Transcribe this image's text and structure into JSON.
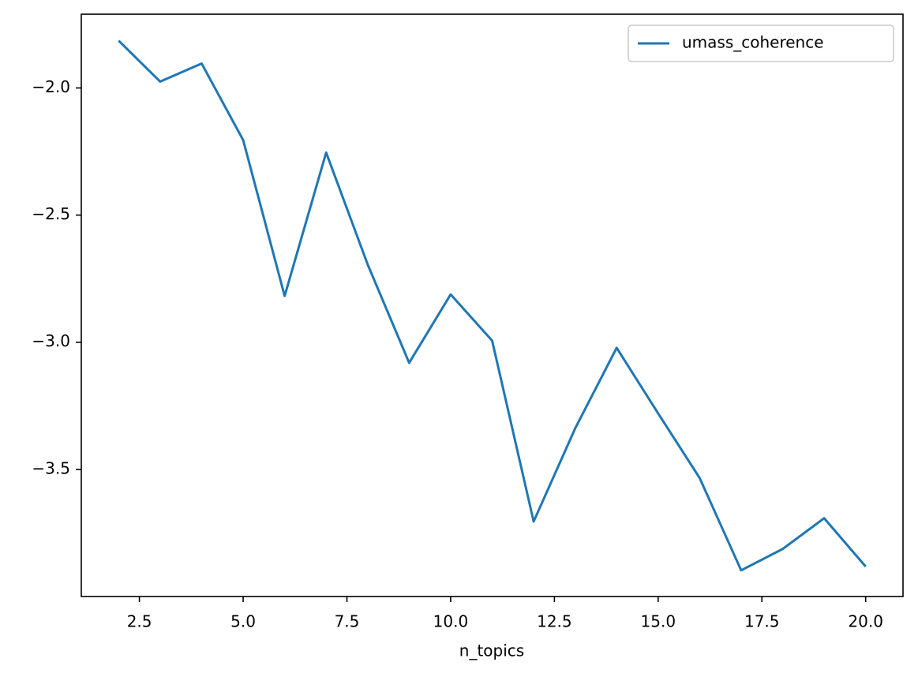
{
  "chart_data": {
    "type": "line",
    "x": [
      2,
      3,
      4,
      5,
      6,
      7,
      8,
      9,
      10,
      11,
      12,
      13,
      14,
      15,
      16,
      17,
      18,
      19,
      20
    ],
    "series": [
      {
        "name": "umass_coherence",
        "color": "#1f77b4",
        "values": [
          -1.814,
          -1.975,
          -1.904,
          -2.205,
          -2.818,
          -2.254,
          -2.694,
          -3.081,
          -2.812,
          -2.994,
          -3.705,
          -3.339,
          -3.022,
          -3.28,
          -3.534,
          -3.897,
          -3.813,
          -3.692,
          -3.882
        ]
      }
    ],
    "xlabel": "n_topics",
    "xlim": [
      1.1,
      20.9
    ],
    "ylim": [
      -4.0,
      -1.71
    ],
    "xticks": [
      2.5,
      {
        "value": 5,
        "label": "5.0"
      },
      7.5,
      {
        "value": 10,
        "label": "10.0"
      },
      12.5,
      {
        "value": 15,
        "label": "15.0"
      },
      17.5,
      {
        "value": 20,
        "label": "20.0"
      }
    ],
    "yticks": [
      {
        "value": -2,
        "label": "−2.0"
      },
      {
        "value": -2.5,
        "label": "−2.5"
      },
      {
        "value": -3,
        "label": "−3.0"
      },
      {
        "value": -3.5,
        "label": "−3.5"
      }
    ],
    "legend": "upper right",
    "grid": false
  }
}
